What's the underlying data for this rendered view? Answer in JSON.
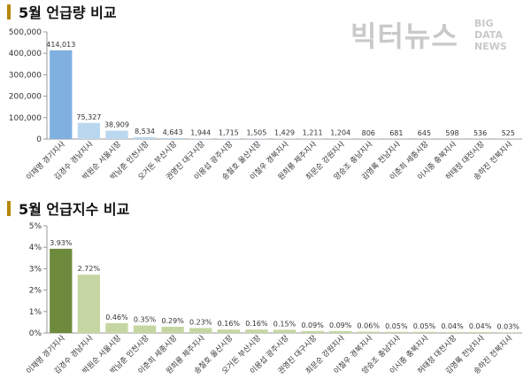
{
  "charts": {
    "mentions": {
      "heading": "5월 언급량 비교"
    },
    "index": {
      "heading": "5월 언급지수 비교"
    }
  },
  "logo": {
    "korean": "빅터뉴스",
    "english_lines": [
      "BIG",
      "DATA",
      "NEWS"
    ]
  },
  "colors": {
    "heading_bar": "#b8860b",
    "mentions_bar_first": "#7fb0e0",
    "mentions_bar": "#bad7f0",
    "index_bar_first": "#6e8b3d",
    "index_bar": "#c5d6a2"
  },
  "chart_data": [
    {
      "type": "bar",
      "title": "5월 언급량 비교",
      "categories": [
        "이재명 경기지사",
        "김경수 경남지사",
        "박원순 서울시장",
        "박남춘 인천시장",
        "오거돈 부산시장",
        "권영진 대구시장",
        "이용섭 광주시장",
        "송철호 울산시장",
        "이철우 경북지사",
        "원희룡 제주지사",
        "최문순 강원지사",
        "양승조 충남지사",
        "김영록 전남지사",
        "이춘희 세종시장",
        "이시종 충북지사",
        "허태정 대전시장",
        "송하진 전북지사"
      ],
      "values": [
        414013,
        75327,
        38909,
        8534,
        4643,
        1944,
        1715,
        1505,
        1429,
        1211,
        1204,
        806,
        681,
        645,
        598,
        536,
        525
      ],
      "value_labels": [
        "414,013",
        "75,327",
        "38,909",
        "8,534",
        "4,643",
        "1,944",
        "1,715",
        "1,505",
        "1,429",
        "1,211",
        "1,204",
        "806",
        "681",
        "645",
        "598",
        "536",
        "525"
      ],
      "ylim": [
        0,
        500000
      ],
      "yticks": [
        0,
        100000,
        200000,
        300000,
        400000,
        500000
      ],
      "ytick_labels": [
        "0",
        "100,000",
        "200,000",
        "300,000",
        "400,000",
        "500,000"
      ],
      "grid": false
    },
    {
      "type": "bar",
      "title": "5월 언급지수 비교",
      "categories": [
        "이재명 경기지사",
        "김경수 경남지사",
        "박원순 서울시장",
        "박남춘 인천시장",
        "이춘희 세종시장",
        "원희룡 제주지사",
        "송철호 울산시장",
        "오거돈 부산시장",
        "이용섭 광주시장",
        "권영진 대구시장",
        "최문순 강원지사",
        "이철우 경북지사",
        "양승조 충남지사",
        "이시종 충북지사",
        "허태정 대전시장",
        "김영록 전남지사",
        "송하진 전북지사"
      ],
      "values": [
        3.93,
        2.72,
        0.46,
        0.35,
        0.29,
        0.23,
        0.16,
        0.16,
        0.15,
        0.09,
        0.09,
        0.06,
        0.05,
        0.05,
        0.04,
        0.04,
        0.03
      ],
      "value_labels": [
        "3.93%",
        "2.72%",
        "0.46%",
        "0.35%",
        "0.29%",
        "0.23%",
        "0.16%",
        "0.16%",
        "0.15%",
        "0.09%",
        "0.09%",
        "0.06%",
        "0.05%",
        "0.05%",
        "0.04%",
        "0.04%",
        "0.03%"
      ],
      "ylim": [
        0,
        5
      ],
      "yticks": [
        0,
        1,
        2,
        3,
        4,
        5
      ],
      "ytick_labels": [
        "0%",
        "1%",
        "2%",
        "3%",
        "4%",
        "5%"
      ],
      "grid": false
    }
  ]
}
